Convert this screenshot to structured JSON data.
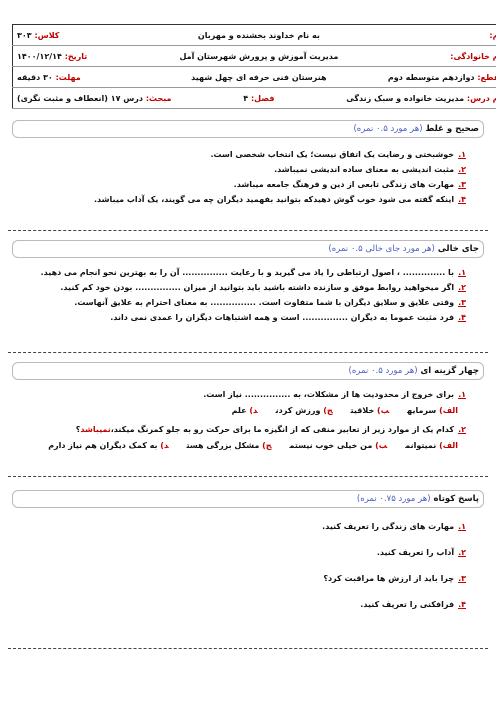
{
  "header": {
    "rows": [
      [
        {
          "label": "نام:",
          "value": ""
        },
        {
          "label": "",
          "value": "به نام خداوند بخشنده و مهربان"
        },
        {
          "label": "کلاس:",
          "value": "۳۰۳"
        }
      ],
      [
        {
          "label": "نام خانوادگی:",
          "value": ""
        },
        {
          "label": "",
          "value": "مدیریت آموزش و پرورش شهرستان آمل"
        },
        {
          "label": "تاریخ:",
          "value": "۱۴۰۰/۱۲/۱۴"
        }
      ],
      [
        {
          "label": "مقطع:",
          "value": "دوازدهم متوسطه دوم"
        },
        {
          "label": "",
          "value": "هنرستان فنی حرفه ای چهل شهید"
        },
        {
          "label": "مهلت:",
          "value": "۳۰ دقیقه"
        }
      ],
      [
        {
          "label": "نام درس:",
          "value": "مدیریت خانواده و سبک زندگی"
        },
        {
          "label": "فصل:",
          "value": "۴"
        },
        {
          "label": "مبحث:",
          "value": "درس ۱۷ (انعطاف و مثبت نگری)"
        }
      ]
    ]
  },
  "sections": [
    {
      "title": "صحیح و غلط",
      "points": "(هر مورد ۰.۵ نمره)",
      "questions": [
        {
          "num": "۱.",
          "text": "خوشبختی و رضایت یک اتفاق نیست؛ یک انتخاب شخصی است."
        },
        {
          "num": "۲.",
          "text": "مثبت اندیشی به معنای ساده اندیشی نمیباشد."
        },
        {
          "num": "۳.",
          "text": "مهارت های زندگی تابعی از دین و فرهنگ جامعه میباشد."
        },
        {
          "num": "۴.",
          "text": "اینکه گفته می شود خوب گوش دهیدکه بتوانید بفهمید دیگران چه می گویند، یک آداب میباشد."
        }
      ]
    },
    {
      "title": "جای خالی",
      "points": "(هر مورد جای خالی ۰.۵ نمره)",
      "questions": [
        {
          "num": "۱.",
          "text": "با .............. ، اصول ارتباطی را یاد می گیرید و با رعایت ............... آن را به بهترین نحو انجام می دهید."
        },
        {
          "num": "۲.",
          "text": "اگر میخواهید روابط موفق و سازنده داشته باشید باید بتوانید از میزان ............... بودن خود کم کنید."
        },
        {
          "num": "۳.",
          "text": "وقتی علایق و سلایق دیگران با شما متفاوت است. ............... به معنای احترام به علایق آنهاست."
        },
        {
          "num": "۴.",
          "text": "فرد مثبت عموما به دیگران ............... است و همه اشتباهات دیگران را عمدی نمی داند."
        }
      ]
    },
    {
      "title": "چهار گزینه ای",
      "points": "(هر مورد ۰.۵ نمره)",
      "questions": [
        {
          "num": "۱.",
          "text": "برای خروج از محدودیت ها از مشکلات، به ............... نیاز است.",
          "options": [
            {
              "letter": "الف)",
              "text": "سرمایه"
            },
            {
              "letter": "ب)",
              "text": "خلاقیت"
            },
            {
              "letter": "ج)",
              "text": "ورزش کردن"
            },
            {
              "letter": "د)",
              "text": "علم"
            }
          ]
        },
        {
          "num": "۲.",
          "text": "کدام یک از موارد زیر از تعابیر منفی که از انگیزه ما برای حرکت رو به جلو کمرنگ میکند،",
          "emphasis": "نمیباشد",
          "after": "؟",
          "options": [
            {
              "letter": "الف)",
              "text": "نمیتوانم"
            },
            {
              "letter": "ب)",
              "text": "من خیلی خوب نیستم"
            },
            {
              "letter": "ج)",
              "text": "مشکل بزرگی هست"
            },
            {
              "letter": "د)",
              "text": "به کمک دیگران هم نیاز دارم"
            }
          ]
        }
      ]
    },
    {
      "title": "پاسخ کوتاه",
      "points": "(هر مورد ۰.۷۵ نمره)",
      "questions": [
        {
          "num": "۱.",
          "text": "مهارت های زندگی را تعریف کنید."
        },
        {
          "num": "۲.",
          "text": "آداب را تعریف کنید."
        },
        {
          "num": "۳.",
          "text": "چرا باید از ارزش ها مراقبت کرد؟"
        },
        {
          "num": "۴.",
          "text": "فرافکنی را تعریف کنید."
        }
      ]
    }
  ]
}
